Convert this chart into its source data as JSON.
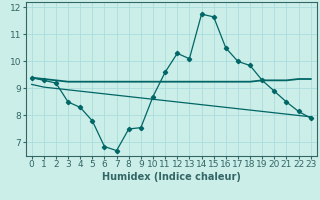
{
  "title": "",
  "xlabel": "Humidex (Indice chaleur)",
  "ylabel": "",
  "bg_color": "#cceee8",
  "grid_color": "#aadddd",
  "line_color": "#006666",
  "x_data": [
    0,
    1,
    2,
    3,
    4,
    5,
    6,
    7,
    8,
    9,
    10,
    11,
    12,
    13,
    14,
    15,
    16,
    17,
    18,
    19,
    20,
    21,
    22,
    23
  ],
  "y_main": [
    9.4,
    9.3,
    9.2,
    8.5,
    8.3,
    7.8,
    6.85,
    6.7,
    7.5,
    7.55,
    8.7,
    9.6,
    10.3,
    10.1,
    11.75,
    11.65,
    10.5,
    10.0,
    9.85,
    9.3,
    8.9,
    8.5,
    8.15,
    7.9
  ],
  "y_flat": [
    9.4,
    9.35,
    9.3,
    9.25,
    9.25,
    9.25,
    9.25,
    9.25,
    9.25,
    9.25,
    9.25,
    9.25,
    9.25,
    9.25,
    9.25,
    9.25,
    9.25,
    9.25,
    9.25,
    9.3,
    9.3,
    9.3,
    9.35,
    9.35
  ],
  "y_decline": [
    9.15,
    9.05,
    9.0,
    8.95,
    8.9,
    8.85,
    8.8,
    8.75,
    8.7,
    8.65,
    8.6,
    8.55,
    8.5,
    8.45,
    8.4,
    8.35,
    8.3,
    8.25,
    8.2,
    8.15,
    8.1,
    8.05,
    8.0,
    7.95
  ],
  "xlim": [
    -0.5,
    23.5
  ],
  "ylim": [
    6.5,
    12.2
  ],
  "yticks": [
    7,
    8,
    9,
    10,
    11,
    12
  ],
  "xticks": [
    0,
    1,
    2,
    3,
    4,
    5,
    6,
    7,
    8,
    9,
    10,
    11,
    12,
    13,
    14,
    15,
    16,
    17,
    18,
    19,
    20,
    21,
    22,
    23
  ],
  "xlabel_fontsize": 7,
  "tick_fontsize": 6.5
}
